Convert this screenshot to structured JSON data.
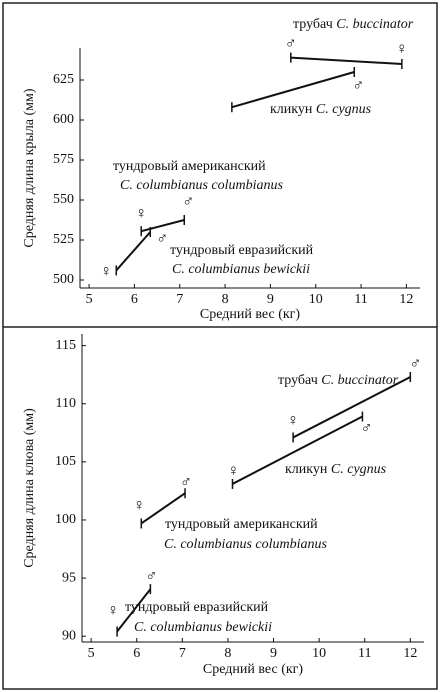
{
  "chart_data": [
    {
      "type": "line",
      "x_label": "Средний вес (кг)",
      "y_label": "Средняя длина крыла (мм)",
      "xlim": [
        4.8,
        12.3
      ],
      "xticks": [
        5,
        6,
        7,
        8,
        9,
        10,
        11,
        12
      ],
      "ylim": [
        495,
        645
      ],
      "yticks": [
        500,
        525,
        550,
        575,
        600,
        625
      ],
      "series": [
        {
          "name": "трубач",
          "latin_name": "C. buccinator",
          "color": "#111",
          "x": [
            9.45,
            11.9
          ],
          "values": [
            639,
            635
          ],
          "point_labels": [
            "♂",
            "♀"
          ]
        },
        {
          "name": "кликун",
          "latin_name": "C. cygnus",
          "color": "#111",
          "x": [
            8.15,
            10.85
          ],
          "values": [
            608,
            630
          ],
          "point_labels": [
            null,
            "♂"
          ]
        },
        {
          "name": "тундровый американский",
          "latin_name": "C. columbianus columbianus",
          "color": "#111",
          "x": [
            6.15,
            7.1
          ],
          "values": [
            530.5,
            537.5
          ],
          "point_labels": [
            "♀",
            "♂"
          ]
        },
        {
          "name": "тундровый евразийский",
          "latin_name": "C. columbianus bewickii",
          "color": "#111",
          "x": [
            5.6,
            6.35
          ],
          "values": [
            506,
            530
          ],
          "point_labels": [
            "♀",
            "♂"
          ]
        }
      ]
    },
    {
      "type": "line",
      "x_label": "Средний вес (кг)",
      "y_label": "Средняя длина клюва (мм)",
      "xlim": [
        4.8,
        12.3
      ],
      "xticks": [
        5,
        6,
        7,
        8,
        9,
        10,
        11,
        12
      ],
      "ylim": [
        89.5,
        116
      ],
      "yticks": [
        90,
        95,
        100,
        105,
        110,
        115
      ],
      "series": [
        {
          "name": "трубач",
          "latin_name": "C. buccinator",
          "color": "#111",
          "x": [
            9.43,
            12
          ],
          "values": [
            107.1,
            112.3
          ],
          "point_labels": [
            "♀",
            "♂"
          ]
        },
        {
          "name": "кликун",
          "latin_name": "C. cygnus",
          "color": "#111",
          "x": [
            8.1,
            10.95
          ],
          "values": [
            103.1,
            108.9
          ],
          "point_labels": [
            "♀",
            "♂"
          ]
        },
        {
          "name": "тундровый американский",
          "latin_name": "C. columbianus columbianus",
          "color": "#111",
          "x": [
            6.1,
            7.06
          ],
          "values": [
            99.7,
            102.3
          ],
          "point_labels": [
            "♀",
            "♂"
          ]
        },
        {
          "name": "тундровый евразийский",
          "latin_name": "C. columbianus bewickii",
          "color": "#111",
          "x": [
            5.57,
            6.3
          ],
          "values": [
            90.4,
            94.05
          ],
          "point_labels": [
            "♀",
            "♂"
          ]
        }
      ]
    }
  ]
}
